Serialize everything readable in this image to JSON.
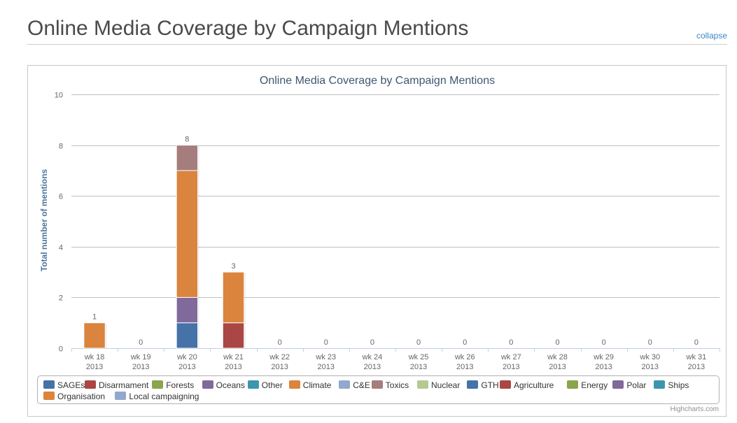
{
  "header": {
    "title": "Online Media Coverage by Campaign Mentions",
    "collapse_label": "collapse"
  },
  "credits": "Highcharts.com",
  "chart_data": {
    "type": "bar",
    "stacked": true,
    "title": "Online Media Coverage by Campaign Mentions",
    "xlabel": "",
    "ylabel": "Total number of mentions",
    "ylim": [
      0,
      10
    ],
    "yticks": [
      0,
      2,
      4,
      6,
      8,
      10
    ],
    "grid": true,
    "legend_placement": "bottom",
    "categories": [
      "wk 18 2013",
      "wk 19 2013",
      "wk 20 2013",
      "wk 21 2013",
      "wk 22 2013",
      "wk 23 2013",
      "wk 24 2013",
      "wk 25 2013",
      "wk 26 2013",
      "wk 27 2013",
      "wk 28 2013",
      "wk 29 2013",
      "wk 30 2013",
      "wk 31 2013"
    ],
    "totals": [
      1,
      0,
      8,
      3,
      0,
      0,
      0,
      0,
      0,
      0,
      0,
      0,
      0,
      0
    ],
    "series": [
      {
        "name": "SAGEs",
        "color": "#4572a7",
        "values": [
          0,
          0,
          1,
          0,
          0,
          0,
          0,
          0,
          0,
          0,
          0,
          0,
          0,
          0
        ]
      },
      {
        "name": "Disarmament",
        "color": "#aa4643",
        "values": [
          0,
          0,
          0,
          0,
          0,
          0,
          0,
          0,
          0,
          0,
          0,
          0,
          0,
          0
        ]
      },
      {
        "name": "Forests",
        "color": "#89a54e",
        "values": [
          0,
          0,
          0,
          0,
          0,
          0,
          0,
          0,
          0,
          0,
          0,
          0,
          0,
          0
        ]
      },
      {
        "name": "Oceans",
        "color": "#80699b",
        "values": [
          0,
          0,
          1,
          0,
          0,
          0,
          0,
          0,
          0,
          0,
          0,
          0,
          0,
          0
        ]
      },
      {
        "name": "Other",
        "color": "#3d96ae",
        "values": [
          0,
          0,
          0,
          0,
          0,
          0,
          0,
          0,
          0,
          0,
          0,
          0,
          0,
          0
        ]
      },
      {
        "name": "Climate",
        "color": "#db843d",
        "values": [
          0,
          0,
          5,
          0,
          0,
          0,
          0,
          0,
          0,
          0,
          0,
          0,
          0,
          0
        ]
      },
      {
        "name": "C&E",
        "color": "#92a8cd",
        "values": [
          0,
          0,
          0,
          0,
          0,
          0,
          0,
          0,
          0,
          0,
          0,
          0,
          0,
          0
        ]
      },
      {
        "name": "Toxics",
        "color": "#a47d7c",
        "values": [
          0,
          0,
          1,
          0,
          0,
          0,
          0,
          0,
          0,
          0,
          0,
          0,
          0,
          0
        ]
      },
      {
        "name": "Nuclear",
        "color": "#b5ca92",
        "values": [
          0,
          0,
          0,
          0,
          0,
          0,
          0,
          0,
          0,
          0,
          0,
          0,
          0,
          0
        ]
      },
      {
        "name": "GTH",
        "color": "#4572a7",
        "values": [
          0,
          0,
          0,
          0,
          0,
          0,
          0,
          0,
          0,
          0,
          0,
          0,
          0,
          0
        ]
      },
      {
        "name": "Agriculture",
        "color": "#aa4643",
        "values": [
          0,
          0,
          0,
          1,
          0,
          0,
          0,
          0,
          0,
          0,
          0,
          0,
          0,
          0
        ]
      },
      {
        "name": "Energy",
        "color": "#89a54e",
        "values": [
          0,
          0,
          0,
          0,
          0,
          0,
          0,
          0,
          0,
          0,
          0,
          0,
          0,
          0
        ]
      },
      {
        "name": "Polar",
        "color": "#80699b",
        "values": [
          0,
          0,
          0,
          0,
          0,
          0,
          0,
          0,
          0,
          0,
          0,
          0,
          0,
          0
        ]
      },
      {
        "name": "Ships",
        "color": "#3d96ae",
        "values": [
          0,
          0,
          0,
          0,
          0,
          0,
          0,
          0,
          0,
          0,
          0,
          0,
          0,
          0
        ]
      },
      {
        "name": "Organisation",
        "color": "#db843d",
        "values": [
          1,
          0,
          0,
          2,
          0,
          0,
          0,
          0,
          0,
          0,
          0,
          0,
          0,
          0
        ]
      },
      {
        "name": "Local campaigning",
        "color": "#92a8cd",
        "values": [
          0,
          0,
          0,
          0,
          0,
          0,
          0,
          0,
          0,
          0,
          0,
          0,
          0,
          0
        ]
      }
    ]
  }
}
